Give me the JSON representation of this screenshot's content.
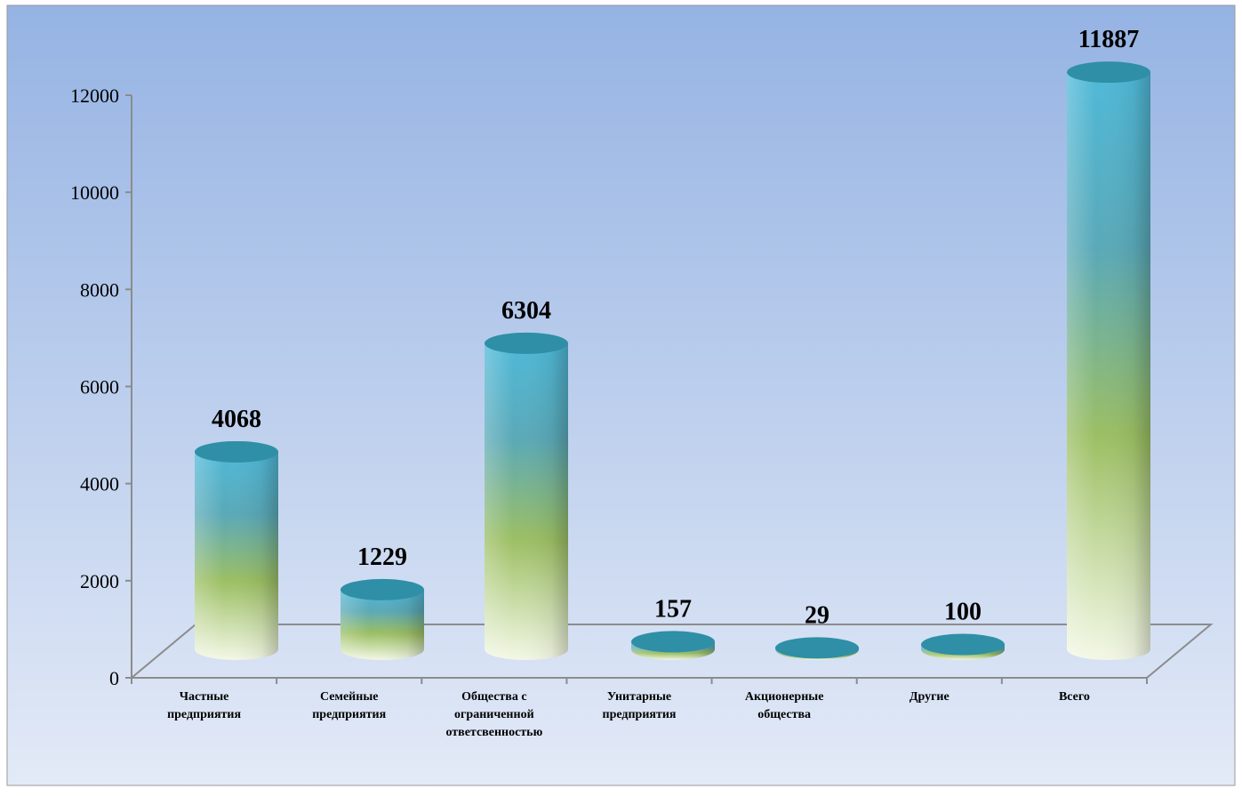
{
  "chart_data": {
    "type": "bar",
    "bar_style": "3d-cylinder",
    "categories": [
      [
        "Частные",
        "предприятия"
      ],
      [
        "Семейные",
        "предприятия"
      ],
      [
        "Общества с",
        "ограниченной",
        "ответсвенностью"
      ],
      [
        "Унитарные",
        "предприятия"
      ],
      [
        "Акционерные",
        "общества"
      ],
      [
        "Другие"
      ],
      [
        "Всего"
      ]
    ],
    "values": [
      4068,
      1229,
      6304,
      157,
      29,
      100,
      11887
    ],
    "data_labels": [
      "4068",
      "1229",
      "6304",
      "157",
      "29",
      "100",
      "11887"
    ],
    "title": "",
    "xlabel": "",
    "ylabel": "",
    "ylim": [
      0,
      12000
    ],
    "yticks": [
      "0",
      "2000",
      "4000",
      "6000",
      "8000",
      "10000",
      "12000"
    ],
    "grid": false,
    "legend": "none",
    "colors": {
      "background_top": "#95b3e3",
      "background_bottom": "#e3eaf7",
      "bar_top": "#4fb9d8",
      "bar_upper": "#5aa9b8",
      "bar_middle": "#9cbf63",
      "bar_bottom": "#f3f8e6",
      "cap": "#2e8fa6",
      "axis": "#8c8c8c",
      "border": "#999999"
    }
  }
}
